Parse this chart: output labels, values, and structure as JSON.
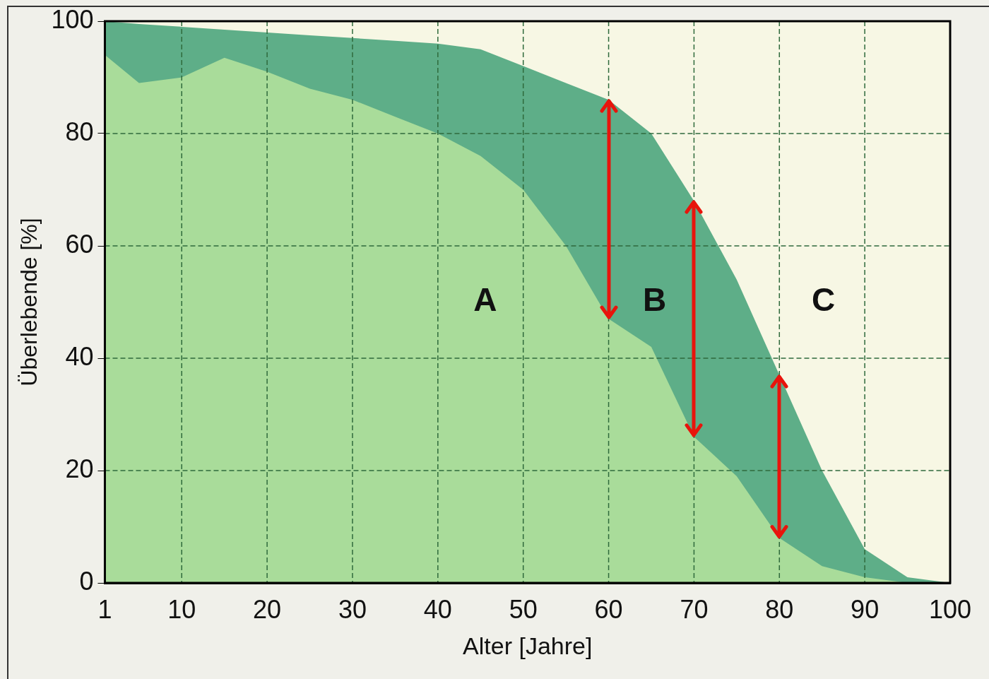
{
  "chart_data": {
    "type": "area",
    "xlabel": "Alter [Jahre]",
    "ylabel": "Überlebende [%]",
    "x": [
      1,
      5,
      10,
      15,
      20,
      25,
      30,
      35,
      40,
      45,
      50,
      55,
      60,
      65,
      70,
      75,
      80,
      85,
      90,
      95,
      100
    ],
    "series": [
      {
        "color": "#a9dc9a",
        "values": [
          94,
          89,
          90,
          93.5,
          91,
          88,
          86,
          83,
          80,
          76,
          70,
          60,
          47,
          42,
          26,
          19,
          8,
          3,
          1,
          0,
          0
        ]
      },
      {
        "color": "#5eae88",
        "values": [
          100,
          99.5,
          99,
          98.5,
          98,
          97.5,
          97,
          96.5,
          96,
          95,
          92,
          89,
          86,
          80,
          68,
          54,
          37,
          20,
          6,
          1,
          0
        ]
      }
    ],
    "xlim": [
      1,
      100
    ],
    "xticks": [
      1,
      10,
      20,
      30,
      40,
      50,
      60,
      70,
      80,
      90,
      100
    ],
    "ylim": [
      0,
      100
    ],
    "yticks": [
      0,
      20,
      40,
      60,
      80,
      100
    ],
    "grid": true,
    "legend": false,
    "annotations": [
      "A",
      {
        "text": "B",
        "x": 60,
        "y": 86
      },
      "C"
    ]
  }
}
